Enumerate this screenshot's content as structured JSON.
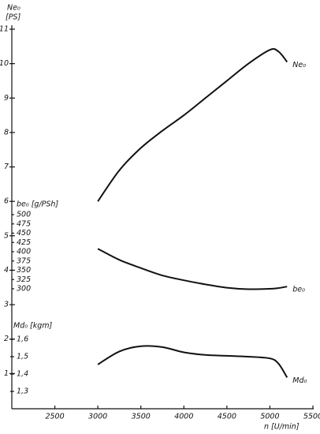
{
  "chart_data": {
    "type": "line",
    "ylabel": [
      "Ne₀",
      "[PS]"
    ],
    "y2label": "be₀ [g/PSh]",
    "y3label": "Md₀ [kgm]",
    "xlabel": "n [U/min]",
    "x": [
      3000,
      3250,
      3500,
      3750,
      4000,
      4250,
      4500,
      4750,
      5000,
      5100,
      5200
    ],
    "xlim": [
      2000,
      5500
    ],
    "xticks": [
      2500,
      3000,
      3500,
      4000,
      4500,
      5000,
      5500
    ],
    "ylim": [
      0,
      11
    ],
    "yticks": [
      1,
      2,
      3,
      4,
      5,
      6,
      7,
      8,
      9,
      10,
      11
    ],
    "y2lim": [
      300,
      500
    ],
    "y2ticks": [
      300,
      325,
      350,
      375,
      400,
      425,
      450,
      475,
      500
    ],
    "y3lim": [
      1.3,
      1.6
    ],
    "y3ticks": [
      {
        "value": 1.3,
        "label": "1,3"
      },
      {
        "value": 1.4,
        "label": "1,4"
      },
      {
        "value": 1.5,
        "label": "1,5"
      },
      {
        "value": 1.6,
        "label": "1,6"
      }
    ],
    "series": [
      {
        "name": "Ne₀",
        "color": "#111111",
        "values": [
          6.0,
          6.9,
          7.55,
          8.05,
          8.5,
          9.0,
          9.5,
          10.0,
          10.4,
          10.35,
          10.05
        ]
      },
      {
        "name": "be₀",
        "color": "#111111",
        "axis": "y2",
        "values": [
          408,
          378,
          356,
          336,
          323,
          312,
          303,
          299,
          300,
          302,
          306
        ]
      },
      {
        "name": "Md₀",
        "color": "#111111",
        "axis": "y3",
        "values": [
          1.455,
          1.53,
          1.56,
          1.555,
          1.525,
          1.51,
          1.505,
          1.5,
          1.49,
          1.46,
          1.38
        ]
      }
    ]
  }
}
